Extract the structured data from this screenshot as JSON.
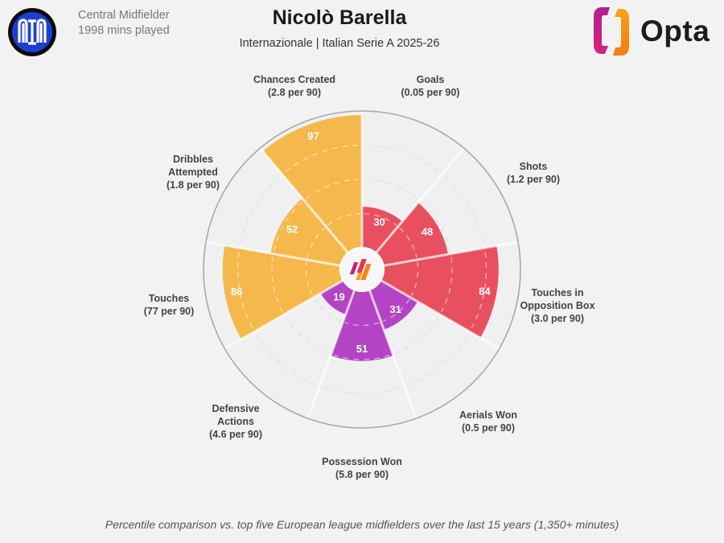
{
  "header": {
    "position": "Central Midfielder",
    "minutes": "1998 mins played",
    "player_name": "Nicolò Barella",
    "subtitle": "Internazionale | Italian Serie A 2025-26",
    "brand": "Opta"
  },
  "footnote": "Percentile comparison vs. top five European league midfielders over the last 15 years (1,350+ minutes)",
  "colors": {
    "background": "#f2f2f2",
    "attacking": "#e9505f",
    "defending": "#b344c4",
    "possession": "#f5b84d",
    "grid": "#dcdcdc",
    "outer_ring": "#a8a8a8"
  },
  "chart_data": {
    "type": "polar-bar",
    "title": "Nicolò Barella",
    "subtitle": "Internazionale | Italian Serie A 2025-26",
    "scale": [
      0,
      100
    ],
    "rings": [
      25,
      50,
      75,
      100
    ],
    "metrics": [
      {
        "name": "Goals",
        "line1": "Goals",
        "line2": "",
        "per90": "(0.05 per 90)",
        "percentile": 30,
        "group": "attacking"
      },
      {
        "name": "Shots",
        "line1": "Shots",
        "line2": "",
        "per90": "(1.2 per 90)",
        "percentile": 48,
        "group": "attacking"
      },
      {
        "name": "Touches in Opposition Box",
        "line1": "Touches in",
        "line2": "Opposition Box",
        "per90": "(3.0 per 90)",
        "percentile": 84,
        "group": "attacking"
      },
      {
        "name": "Aerials Won",
        "line1": "Aerials Won",
        "line2": "",
        "per90": "(0.5 per 90)",
        "percentile": 31,
        "group": "defending"
      },
      {
        "name": "Possession Won",
        "line1": "Possession Won",
        "line2": "",
        "per90": "(5.8 per 90)",
        "percentile": 51,
        "group": "defending"
      },
      {
        "name": "Defensive Actions",
        "line1": "Defensive",
        "line2": "Actions",
        "per90": "(4.6 per 90)",
        "percentile": 19,
        "group": "defending"
      },
      {
        "name": "Touches",
        "line1": "Touches",
        "line2": "",
        "per90": "(77 per 90)",
        "percentile": 86,
        "group": "possession"
      },
      {
        "name": "Dribbles Attempted",
        "line1": "Dribbles",
        "line2": "Attempted",
        "per90": "(1.8 per 90)",
        "percentile": 52,
        "group": "possession"
      },
      {
        "name": "Chances Created",
        "line1": "Chances Created",
        "line2": "",
        "per90": "(2.8 per 90)",
        "percentile": 97,
        "group": "possession"
      }
    ]
  }
}
